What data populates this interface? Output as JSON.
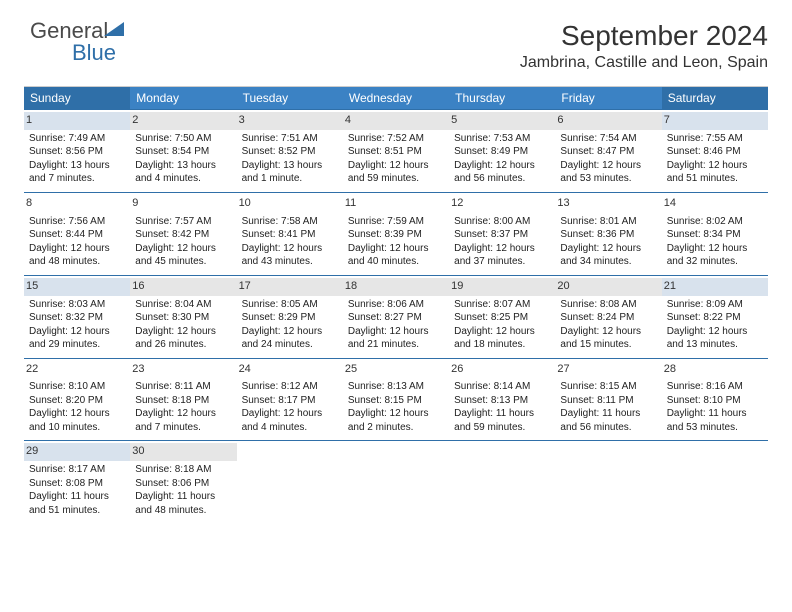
{
  "logo": {
    "text1": "General",
    "text2": "Blue"
  },
  "title": "September 2024",
  "subtitle": "Jambrina, Castille and Leon, Spain",
  "colors": {
    "header_bg": "#3b82c4",
    "header_weekend_bg": "#2f6fa8",
    "row_border": "#2f6fa8",
    "daynum_alt": "#e6e6e6",
    "daynum_alt_weekend": "#d8e2ed"
  },
  "day_headers": [
    "Sunday",
    "Monday",
    "Tuesday",
    "Wednesday",
    "Thursday",
    "Friday",
    "Saturday"
  ],
  "days": [
    {
      "n": 1,
      "sunrise": "7:49 AM",
      "sunset": "8:56 PM",
      "daylight": "13 hours and 7 minutes."
    },
    {
      "n": 2,
      "sunrise": "7:50 AM",
      "sunset": "8:54 PM",
      "daylight": "13 hours and 4 minutes."
    },
    {
      "n": 3,
      "sunrise": "7:51 AM",
      "sunset": "8:52 PM",
      "daylight": "13 hours and 1 minute."
    },
    {
      "n": 4,
      "sunrise": "7:52 AM",
      "sunset": "8:51 PM",
      "daylight": "12 hours and 59 minutes."
    },
    {
      "n": 5,
      "sunrise": "7:53 AM",
      "sunset": "8:49 PM",
      "daylight": "12 hours and 56 minutes."
    },
    {
      "n": 6,
      "sunrise": "7:54 AM",
      "sunset": "8:47 PM",
      "daylight": "12 hours and 53 minutes."
    },
    {
      "n": 7,
      "sunrise": "7:55 AM",
      "sunset": "8:46 PM",
      "daylight": "12 hours and 51 minutes."
    },
    {
      "n": 8,
      "sunrise": "7:56 AM",
      "sunset": "8:44 PM",
      "daylight": "12 hours and 48 minutes."
    },
    {
      "n": 9,
      "sunrise": "7:57 AM",
      "sunset": "8:42 PM",
      "daylight": "12 hours and 45 minutes."
    },
    {
      "n": 10,
      "sunrise": "7:58 AM",
      "sunset": "8:41 PM",
      "daylight": "12 hours and 43 minutes."
    },
    {
      "n": 11,
      "sunrise": "7:59 AM",
      "sunset": "8:39 PM",
      "daylight": "12 hours and 40 minutes."
    },
    {
      "n": 12,
      "sunrise": "8:00 AM",
      "sunset": "8:37 PM",
      "daylight": "12 hours and 37 minutes."
    },
    {
      "n": 13,
      "sunrise": "8:01 AM",
      "sunset": "8:36 PM",
      "daylight": "12 hours and 34 minutes."
    },
    {
      "n": 14,
      "sunrise": "8:02 AM",
      "sunset": "8:34 PM",
      "daylight": "12 hours and 32 minutes."
    },
    {
      "n": 15,
      "sunrise": "8:03 AM",
      "sunset": "8:32 PM",
      "daylight": "12 hours and 29 minutes."
    },
    {
      "n": 16,
      "sunrise": "8:04 AM",
      "sunset": "8:30 PM",
      "daylight": "12 hours and 26 minutes."
    },
    {
      "n": 17,
      "sunrise": "8:05 AM",
      "sunset": "8:29 PM",
      "daylight": "12 hours and 24 minutes."
    },
    {
      "n": 18,
      "sunrise": "8:06 AM",
      "sunset": "8:27 PM",
      "daylight": "12 hours and 21 minutes."
    },
    {
      "n": 19,
      "sunrise": "8:07 AM",
      "sunset": "8:25 PM",
      "daylight": "12 hours and 18 minutes."
    },
    {
      "n": 20,
      "sunrise": "8:08 AM",
      "sunset": "8:24 PM",
      "daylight": "12 hours and 15 minutes."
    },
    {
      "n": 21,
      "sunrise": "8:09 AM",
      "sunset": "8:22 PM",
      "daylight": "12 hours and 13 minutes."
    },
    {
      "n": 22,
      "sunrise": "8:10 AM",
      "sunset": "8:20 PM",
      "daylight": "12 hours and 10 minutes."
    },
    {
      "n": 23,
      "sunrise": "8:11 AM",
      "sunset": "8:18 PM",
      "daylight": "12 hours and 7 minutes."
    },
    {
      "n": 24,
      "sunrise": "8:12 AM",
      "sunset": "8:17 PM",
      "daylight": "12 hours and 4 minutes."
    },
    {
      "n": 25,
      "sunrise": "8:13 AM",
      "sunset": "8:15 PM",
      "daylight": "12 hours and 2 minutes."
    },
    {
      "n": 26,
      "sunrise": "8:14 AM",
      "sunset": "8:13 PM",
      "daylight": "11 hours and 59 minutes."
    },
    {
      "n": 27,
      "sunrise": "8:15 AM",
      "sunset": "8:11 PM",
      "daylight": "11 hours and 56 minutes."
    },
    {
      "n": 28,
      "sunrise": "8:16 AM",
      "sunset": "8:10 PM",
      "daylight": "11 hours and 53 minutes."
    },
    {
      "n": 29,
      "sunrise": "8:17 AM",
      "sunset": "8:08 PM",
      "daylight": "11 hours and 51 minutes."
    },
    {
      "n": 30,
      "sunrise": "8:18 AM",
      "sunset": "8:06 PM",
      "daylight": "11 hours and 48 minutes."
    }
  ]
}
